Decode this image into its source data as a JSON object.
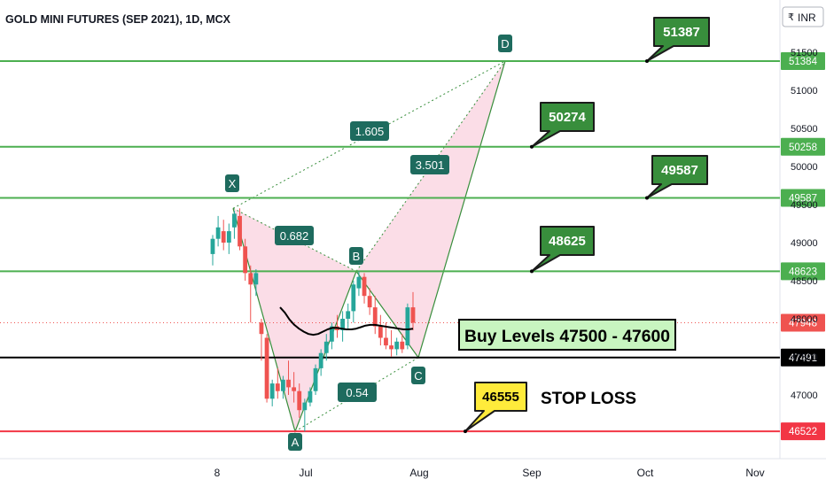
{
  "header": {
    "title": "GOLD MINI FUTURES (SEP 2021), 1D, MCX",
    "currency": "INR",
    "currency_prefix": "₹"
  },
  "chart_data": {
    "type": "candlestick",
    "title": "GOLD MINI FUTURES (SEP 2021), 1D, MCX",
    "currency": "INR",
    "ylim": [
      46250,
      51700
    ],
    "y_ticks": [
      47000,
      47500,
      48000,
      48500,
      49000,
      49500,
      50000,
      50500,
      51000,
      51500
    ],
    "x_ticks": [
      "8",
      "Jul",
      "Aug",
      "Sep",
      "Oct",
      "Nov"
    ],
    "candles": [
      {
        "o": 48850,
        "h": 49100,
        "l": 48700,
        "c": 49050
      },
      {
        "o": 49050,
        "h": 49350,
        "l": 48950,
        "c": 49200
      },
      {
        "o": 49150,
        "h": 49300,
        "l": 48900,
        "c": 49000
      },
      {
        "o": 49000,
        "h": 49250,
        "l": 48850,
        "c": 49150
      },
      {
        "o": 49200,
        "h": 49420,
        "l": 49050,
        "c": 49380
      },
      {
        "o": 49350,
        "h": 49450,
        "l": 48900,
        "c": 48950
      },
      {
        "o": 48950,
        "h": 49050,
        "l": 48500,
        "c": 48600
      },
      {
        "o": 48600,
        "h": 48700,
        "l": 47950,
        "c": 48450
      },
      {
        "o": 48450,
        "h": 48650,
        "l": 48300,
        "c": 48600
      },
      {
        "o": 47950,
        "h": 48000,
        "l": 47450,
        "c": 47800
      },
      {
        "o": 47750,
        "h": 47800,
        "l": 46900,
        "c": 46950
      },
      {
        "o": 46950,
        "h": 47200,
        "l": 46850,
        "c": 47150
      },
      {
        "o": 47150,
        "h": 47350,
        "l": 46950,
        "c": 47050
      },
      {
        "o": 47050,
        "h": 47250,
        "l": 46950,
        "c": 47200
      },
      {
        "o": 47200,
        "h": 47450,
        "l": 47000,
        "c": 47100
      },
      {
        "o": 47100,
        "h": 47300,
        "l": 46900,
        "c": 47050
      },
      {
        "o": 47050,
        "h": 47150,
        "l": 46700,
        "c": 46800
      },
      {
        "o": 46800,
        "h": 46950,
        "l": 46520,
        "c": 46900
      },
      {
        "o": 46900,
        "h": 47100,
        "l": 46850,
        "c": 47050
      },
      {
        "o": 47050,
        "h": 47400,
        "l": 47000,
        "c": 47350
      },
      {
        "o": 47350,
        "h": 47600,
        "l": 47250,
        "c": 47550
      },
      {
        "o": 47550,
        "h": 47800,
        "l": 47450,
        "c": 47700
      },
      {
        "o": 47700,
        "h": 47950,
        "l": 47600,
        "c": 47900
      },
      {
        "o": 47900,
        "h": 48050,
        "l": 47750,
        "c": 47850
      },
      {
        "o": 47850,
        "h": 48100,
        "l": 47700,
        "c": 48000
      },
      {
        "o": 48000,
        "h": 48200,
        "l": 47850,
        "c": 48100
      },
      {
        "o": 48100,
        "h": 48500,
        "l": 47950,
        "c": 48450
      },
      {
        "o": 48400,
        "h": 48623,
        "l": 48300,
        "c": 48550
      },
      {
        "o": 48550,
        "h": 48600,
        "l": 48200,
        "c": 48300
      },
      {
        "o": 48300,
        "h": 48400,
        "l": 48050,
        "c": 48150
      },
      {
        "o": 48150,
        "h": 48300,
        "l": 47800,
        "c": 47900
      },
      {
        "o": 47900,
        "h": 48050,
        "l": 47650,
        "c": 47750
      },
      {
        "o": 47750,
        "h": 47950,
        "l": 47600,
        "c": 47650
      },
      {
        "o": 47650,
        "h": 47850,
        "l": 47500,
        "c": 47600
      },
      {
        "o": 47600,
        "h": 47750,
        "l": 47520,
        "c": 47700
      },
      {
        "o": 47700,
        "h": 47800,
        "l": 47550,
        "c": 47600
      },
      {
        "o": 47650,
        "h": 48200,
        "l": 47600,
        "c": 48150
      },
      {
        "o": 48150,
        "h": 48350,
        "l": 47850,
        "c": 47948
      }
    ],
    "moving_average": [
      48150,
      48080,
      47990,
      47920,
      47870,
      47830,
      47800,
      47790,
      47800,
      47830,
      47860,
      47880,
      47880,
      47870,
      47860,
      47860,
      47870,
      47890,
      47910,
      47920,
      47920,
      47910,
      47900,
      47890,
      47880,
      47870,
      47860,
      47860,
      47870
    ],
    "pattern": {
      "points": [
        {
          "label": "X",
          "value": 49450
        },
        {
          "label": "A",
          "value": 46520
        },
        {
          "label": "B",
          "value": 48623
        },
        {
          "label": "C",
          "value": 47491
        },
        {
          "label": "D",
          "value": 51384
        }
      ],
      "ratios": [
        "0.682",
        "0.54",
        "1.605",
        "3.501"
      ]
    },
    "levels": [
      {
        "value": 51384,
        "color": "#4caf50",
        "callout": "51387"
      },
      {
        "value": 50258,
        "color": "#4caf50",
        "callout": "50274"
      },
      {
        "value": 49587,
        "color": "#4caf50",
        "callout": "49587"
      },
      {
        "value": 48623,
        "color": "#4caf50",
        "callout": "48625"
      },
      {
        "value": 47491,
        "color": "#000000",
        "callout": ""
      },
      {
        "value": 46522,
        "color": "#f23645",
        "callout": "46555"
      }
    ],
    "last_price": {
      "value": 47948,
      "color": "#ef5350"
    },
    "annotations": {
      "buy_levels": "Buy Levels 47500 - 47600",
      "stop_loss": "STOP LOSS"
    },
    "colors": {
      "up": "#26a69a",
      "down": "#ef5350",
      "pattern_fill": "#f8bbd0",
      "pattern_line": "#388e3c",
      "level_green": "#4caf50",
      "callout_green": "#388e3c",
      "callout_yellow": "#ffeb3b",
      "ratio_label": "#1e6b5e",
      "buy_box": "#c8f5c0",
      "stop_line": "#f23645"
    }
  }
}
